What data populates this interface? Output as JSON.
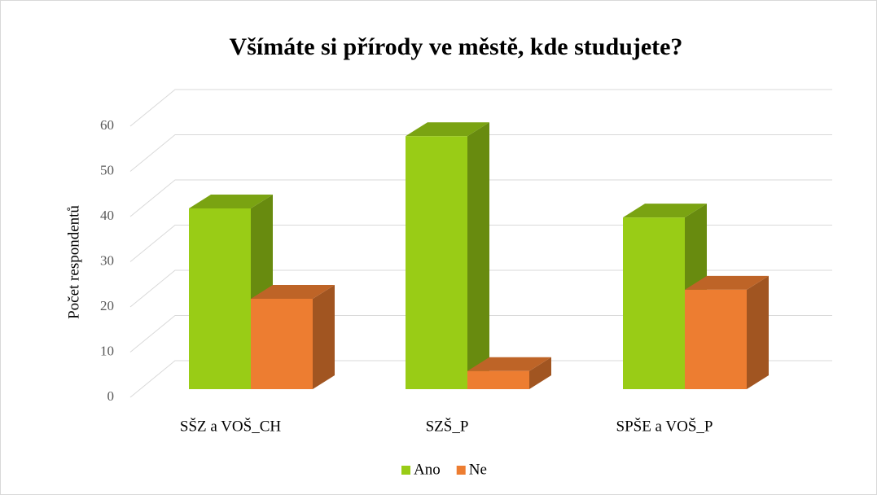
{
  "chart_data": {
    "type": "bar3d",
    "title": "Všímáte si přírody ve městě, kde studujete?",
    "ylabel": "Počet respondentů",
    "categories": [
      "SŠZ a VOŠ_CH",
      "SZŠ_P",
      "SPŠE a VOŠ_P"
    ],
    "series": [
      {
        "name": "Ano",
        "color": "#99cc16",
        "values": [
          40,
          56,
          38
        ]
      },
      {
        "name": "Ne",
        "color": "#ed7d31",
        "values": [
          20,
          4,
          22
        ]
      }
    ],
    "ylim": [
      0,
      60
    ],
    "yticks": [
      0,
      10,
      20,
      30,
      40,
      50,
      60
    ],
    "grid": true,
    "legend": "bottom"
  }
}
